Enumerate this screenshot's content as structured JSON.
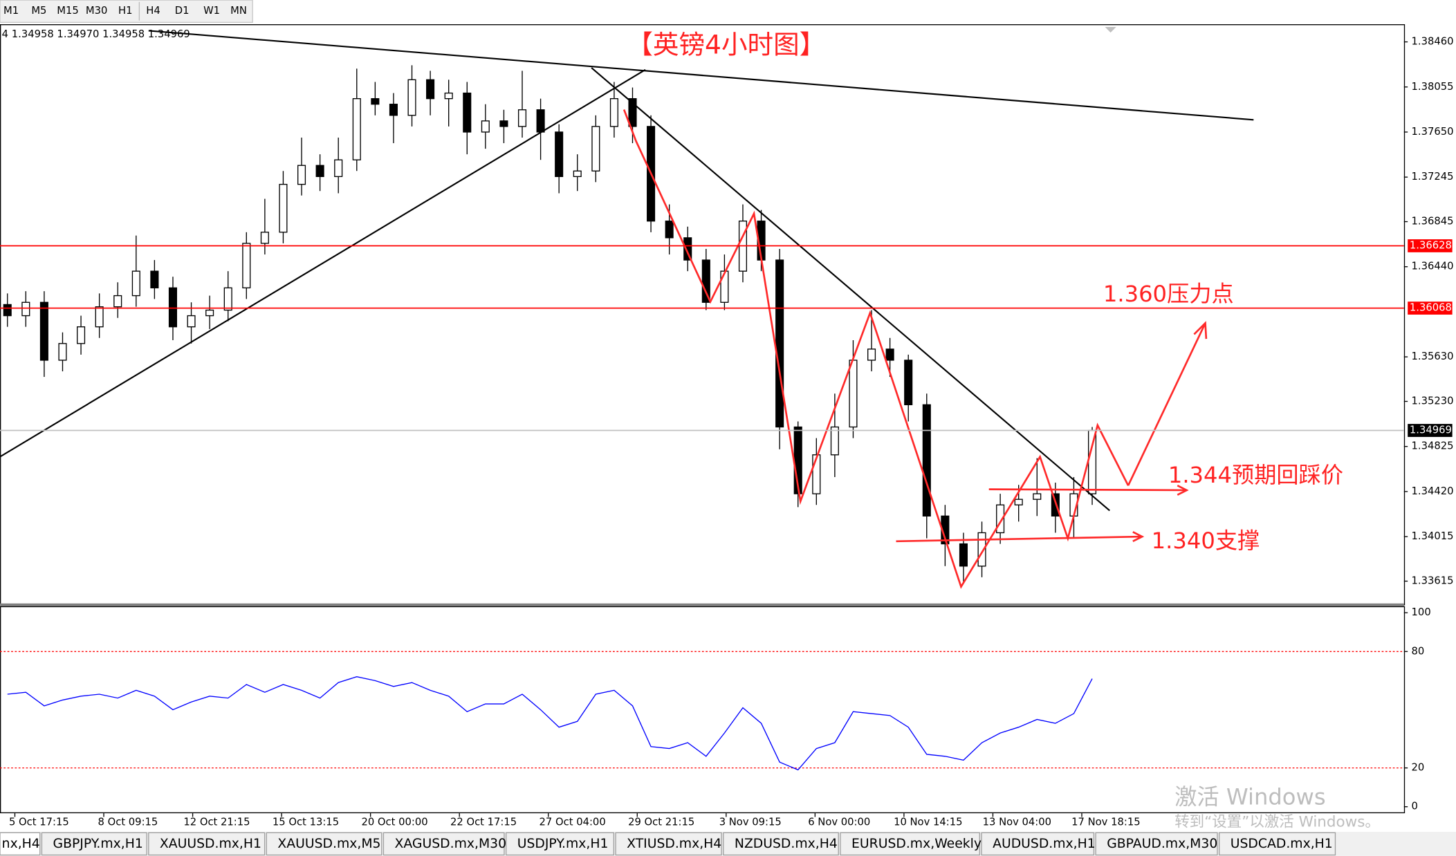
{
  "toolbar": {
    "timeframes": [
      "M1",
      "M5",
      "M15",
      "M30",
      "H1",
      "H4",
      "D1",
      "W1",
      "MN"
    ]
  },
  "chart_data": [
    {
      "type": "candlestick",
      "title": "【英镑4小时图】",
      "info": "4  1.34958 1.34970 1.34958 1.34969",
      "annotations": [
        "1.360压力点",
        "1.344预期回踩价",
        "1.340支撑"
      ],
      "ohlc": [
        [
          1.361,
          1.362,
          1.359,
          1.36
        ],
        [
          1.36,
          1.3622,
          1.359,
          1.3612
        ],
        [
          1.3612,
          1.3622,
          1.3545,
          1.356
        ],
        [
          1.356,
          1.3585,
          1.355,
          1.3575
        ],
        [
          1.3575,
          1.36,
          1.3565,
          1.359
        ],
        [
          1.359,
          1.362,
          1.358,
          1.3608
        ],
        [
          1.3608,
          1.363,
          1.3598,
          1.3618
        ],
        [
          1.3618,
          1.3672,
          1.3608,
          1.364
        ],
        [
          1.364,
          1.365,
          1.3615,
          1.3625
        ],
        [
          1.3625,
          1.3635,
          1.3578,
          1.359
        ],
        [
          1.359,
          1.3612,
          1.3575,
          1.36
        ],
        [
          1.36,
          1.3618,
          1.3588,
          1.3605
        ],
        [
          1.3605,
          1.364,
          1.3595,
          1.3625
        ],
        [
          1.3625,
          1.3675,
          1.3615,
          1.3665
        ],
        [
          1.3665,
          1.3705,
          1.3655,
          1.3675
        ],
        [
          1.3675,
          1.373,
          1.3665,
          1.3718
        ],
        [
          1.3718,
          1.376,
          1.3708,
          1.3735
        ],
        [
          1.3735,
          1.3745,
          1.3712,
          1.3725
        ],
        [
          1.3725,
          1.376,
          1.371,
          1.374
        ],
        [
          1.374,
          1.3822,
          1.373,
          1.3795
        ],
        [
          1.3795,
          1.381,
          1.378,
          1.379
        ],
        [
          1.379,
          1.38,
          1.3755,
          1.378
        ],
        [
          1.378,
          1.3825,
          1.377,
          1.3812
        ],
        [
          1.3812,
          1.382,
          1.378,
          1.3795
        ],
        [
          1.3795,
          1.3812,
          1.377,
          1.38
        ],
        [
          1.38,
          1.381,
          1.3745,
          1.3765
        ],
        [
          1.3765,
          1.379,
          1.375,
          1.3775
        ],
        [
          1.3775,
          1.3785,
          1.3755,
          1.377
        ],
        [
          1.377,
          1.382,
          1.376,
          1.3785
        ],
        [
          1.3785,
          1.3795,
          1.374,
          1.3765
        ],
        [
          1.3765,
          1.3772,
          1.371,
          1.3725
        ],
        [
          1.3725,
          1.3745,
          1.3712,
          1.373
        ],
        [
          1.373,
          1.378,
          1.372,
          1.377
        ],
        [
          1.377,
          1.381,
          1.376,
          1.3795
        ],
        [
          1.3795,
          1.3805,
          1.3755,
          1.377
        ],
        [
          1.377,
          1.378,
          1.3675,
          1.3685
        ],
        [
          1.3685,
          1.37,
          1.3655,
          1.367
        ],
        [
          1.367,
          1.368,
          1.364,
          1.365
        ],
        [
          1.365,
          1.366,
          1.3605,
          1.3612
        ],
        [
          1.3612,
          1.3655,
          1.3605,
          1.364
        ],
        [
          1.364,
          1.37,
          1.363,
          1.3685
        ],
        [
          1.3685,
          1.3695,
          1.364,
          1.365
        ],
        [
          1.365,
          1.366,
          1.348,
          1.35
        ],
        [
          1.35,
          1.3505,
          1.3428,
          1.344
        ],
        [
          1.344,
          1.349,
          1.343,
          1.3475
        ],
        [
          1.3475,
          1.353,
          1.3455,
          1.35
        ],
        [
          1.35,
          1.3578,
          1.349,
          1.356
        ],
        [
          1.356,
          1.3605,
          1.355,
          1.357
        ],
        [
          1.357,
          1.358,
          1.3545,
          1.356
        ],
        [
          1.356,
          1.3565,
          1.3505,
          1.352
        ],
        [
          1.352,
          1.353,
          1.34,
          1.342
        ],
        [
          1.342,
          1.343,
          1.3375,
          1.3395
        ],
        [
          1.3395,
          1.3405,
          1.336,
          1.3375
        ],
        [
          1.3375,
          1.3415,
          1.3365,
          1.3405
        ],
        [
          1.3405,
          1.344,
          1.3395,
          1.343
        ],
        [
          1.343,
          1.3448,
          1.3415,
          1.3435
        ],
        [
          1.3435,
          1.3472,
          1.342,
          1.344
        ],
        [
          1.344,
          1.345,
          1.3405,
          1.342
        ],
        [
          1.342,
          1.3455,
          1.34,
          1.344
        ],
        [
          1.344,
          1.35,
          1.343,
          1.34969
        ]
      ],
      "ylim": [
        1.33398,
        1.38602
      ],
      "yticks": [
        {
          "value": 1.3846,
          "label": "1.38460"
        },
        {
          "value": 1.38055,
          "label": "1.38055"
        },
        {
          "value": 1.3765,
          "label": "1.37650"
        },
        {
          "value": 1.37245,
          "label": "1.37245"
        },
        {
          "value": 1.36845,
          "label": "1.36845"
        },
        {
          "value": 1.3644,
          "label": "1.36440"
        },
        {
          "value": 1.3563,
          "label": "1.35630"
        },
        {
          "value": 1.3523,
          "label": "1.35230"
        },
        {
          "value": 1.34825,
          "label": "1.34825"
        },
        {
          "value": 1.3442,
          "label": "1.34420"
        },
        {
          "value": 1.34015,
          "label": "1.34015"
        },
        {
          "value": 1.33615,
          "label": "1.33615"
        }
      ],
      "levels": [
        {
          "value": 1.36628,
          "label": "1.36628",
          "color": "#ff0000"
        },
        {
          "value": 1.36068,
          "label": "1.36068",
          "color": "#ff0000"
        },
        {
          "value": 1.34969,
          "label": "1.34969",
          "color": "#000000"
        }
      ],
      "x_labels": [
        "5 Oct 17:15",
        "8 Oct 09:15",
        "12 Oct 21:15",
        "15 Oct 13:15",
        "20 Oct 00:00",
        "22 Oct 17:15",
        "27 Oct 04:00",
        "29 Oct 21:15",
        "3 Nov 09:15",
        "6 Nov 00:00",
        "10 Nov 14:15",
        "13 Nov 04:00",
        "17 Nov 18:15"
      ]
    },
    {
      "type": "line",
      "color": "#0000ff",
      "values": [
        58,
        59,
        52,
        55,
        57,
        58,
        56,
        60,
        57,
        50,
        54,
        57,
        56,
        63,
        59,
        63,
        60,
        56,
        64,
        67,
        65,
        62,
        64,
        60,
        57,
        49,
        53,
        53,
        58,
        50,
        41,
        44,
        58,
        60,
        52,
        31,
        30,
        33,
        26,
        38,
        51,
        43,
        23,
        19,
        30,
        33,
        49,
        48,
        47,
        41,
        27,
        26,
        24,
        33,
        38,
        41,
        45,
        43,
        48,
        66
      ],
      "ylim": [
        0,
        100
      ],
      "yticks": [
        100,
        80,
        20,
        0
      ],
      "guide_lines": [
        80,
        20
      ]
    }
  ],
  "tabs": [
    "nx,H4",
    "GBPJPY.mx,H1",
    "XAUUSD.mx,H1",
    "XAUUSD.mx,M5",
    "XAGUSD.mx,M30",
    "USDJPY.mx,H1",
    "XTIUSD.mx,H4",
    "NZDUSD.mx,H4",
    "EURUSD.mx,Weekly",
    "AUDUSD.mx,H1",
    "GBPAUD.mx,M30",
    "USDCAD.mx,H1"
  ],
  "watermark": [
    "激活 Windows",
    "转到“设置”以激活 Windows。"
  ]
}
